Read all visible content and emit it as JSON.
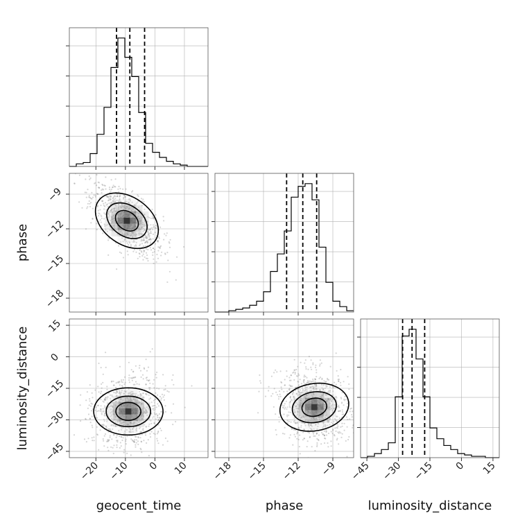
{
  "chart_data": {
    "type": "corner",
    "parameters": [
      "geocent_time",
      "phase",
      "luminosity_distance"
    ],
    "ranges": {
      "geocent_time": [
        -29,
        18
      ],
      "phase": [
        -19.2,
        -7.2
      ],
      "luminosity_distance": [
        -48,
        18
      ]
    },
    "ticks": {
      "geocent_time": [
        -20,
        -10,
        0,
        10
      ],
      "phase": [
        -18,
        -15,
        -12,
        -9
      ],
      "luminosity_distance": [
        -45,
        -30,
        -15,
        0,
        15
      ]
    },
    "quantiles": {
      "geocent_time": [
        -13,
        -8.5,
        -3.5
      ],
      "phase": [
        -13,
        -11.6,
        -10.4
      ],
      "luminosity_distance": [
        -28,
        -23.5,
        -17.5
      ]
    },
    "histograms": {
      "geocent_time": {
        "edges": [
          -29,
          -26.65,
          -24.3,
          -21.95,
          -19.6,
          -17.25,
          -14.9,
          -12.55,
          -10.2,
          -7.85,
          -5.5,
          -3.15,
          -0.8,
          1.55,
          3.9,
          6.25,
          8.6,
          10.95,
          13.3,
          15.65,
          18
        ],
        "counts": [
          0,
          2,
          3,
          10,
          25,
          46,
          77,
          100,
          85,
          70,
          42,
          18,
          11,
          7,
          4,
          2,
          1,
          0,
          0,
          0
        ]
      },
      "phase": {
        "edges": [
          -19.2,
          -18.6,
          -18.0,
          -17.4,
          -16.8,
          -16.2,
          -15.6,
          -15.0,
          -14.4,
          -13.8,
          -13.2,
          -12.6,
          -12.0,
          -11.4,
          -10.8,
          -10.2,
          -9.6,
          -9.0,
          -8.4,
          -7.8,
          -7.2
        ],
        "counts": [
          0,
          0,
          1,
          2,
          3,
          5,
          8,
          15,
          30,
          43,
          60,
          85,
          93,
          95,
          83,
          48,
          22,
          8,
          4,
          1
        ]
      },
      "luminosity_distance": {
        "edges": [
          -48,
          -44.7,
          -41.4,
          -38.1,
          -34.8,
          -31.5,
          -28.2,
          -24.9,
          -21.6,
          -18.3,
          -15,
          -11.7,
          -8.4,
          -5.1,
          -1.8,
          1.5,
          4.8,
          8.1,
          11.4,
          14.7,
          18
        ],
        "counts": [
          0,
          1,
          3,
          6,
          11,
          45,
          90,
          95,
          73,
          45,
          22,
          14,
          9,
          6,
          3,
          2,
          1,
          1,
          0,
          0
        ]
      }
    },
    "density_center": {
      "geocent_time|phase": [
        -9.5,
        -11.3
      ],
      "geocent_time|luminosity_distance": [
        -9,
        -26
      ],
      "phase|luminosity_distance": [
        -10.6,
        -24
      ]
    }
  }
}
